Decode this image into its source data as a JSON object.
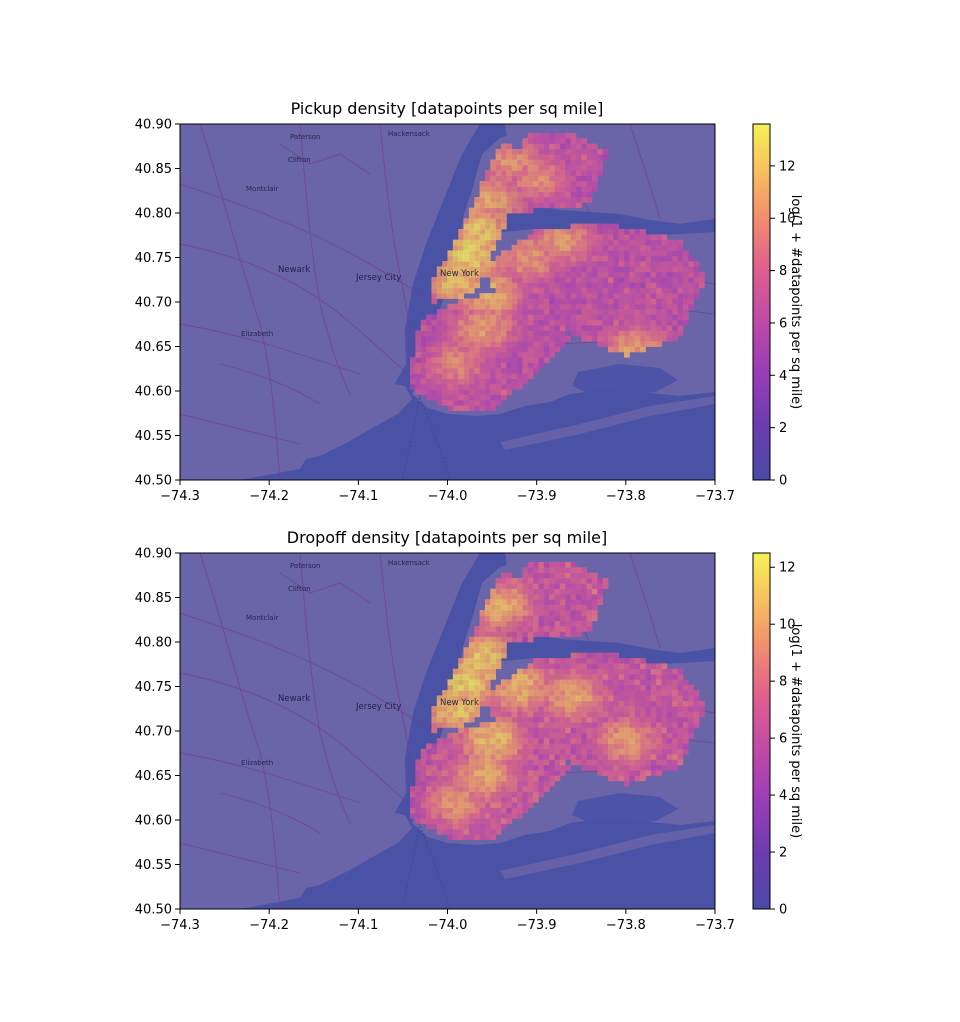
{
  "chart_data": [
    {
      "type": "heatmap",
      "title": "Pickup density [datapoints per sq mile]",
      "xlim": [
        -74.3,
        -73.7
      ],
      "ylim": [
        40.5,
        40.9
      ],
      "xticks": [
        -74.3,
        -74.2,
        -74.1,
        -74.0,
        -73.9,
        -73.8,
        -73.7
      ],
      "xtick_labels": [
        "−74.3",
        "−74.2",
        "−74.1",
        "−74.0",
        "−73.9",
        "−73.8",
        "−73.7"
      ],
      "yticks": [
        40.5,
        40.55,
        40.6,
        40.65,
        40.7,
        40.75,
        40.8,
        40.85,
        40.9
      ],
      "ytick_labels": [
        "40.50",
        "40.55",
        "40.60",
        "40.65",
        "40.70",
        "40.75",
        "40.80",
        "40.85",
        "40.90"
      ],
      "colorbar": {
        "label": "log(1 + #datapoints per sq mile)",
        "range": [
          0,
          13.6
        ],
        "ticks": [
          0,
          2,
          4,
          6,
          8,
          10,
          12
        ],
        "tick_labels": [
          "0",
          "2",
          "4",
          "6",
          "8",
          "10",
          "12"
        ],
        "colormap": "plasma"
      },
      "hotspots": [
        {
          "lon": -73.975,
          "lat": 40.755,
          "value": 13.2
        },
        {
          "lon": -73.965,
          "lat": 40.78,
          "value": 12.5
        },
        {
          "lon": -73.99,
          "lat": 40.725,
          "value": 12.4
        },
        {
          "lon": -73.955,
          "lat": 40.71,
          "value": 11.8
        },
        {
          "lon": -73.95,
          "lat": 40.815,
          "value": 11.2
        },
        {
          "lon": -73.93,
          "lat": 40.86,
          "value": 10.5
        },
        {
          "lon": -73.91,
          "lat": 40.75,
          "value": 10.8
        },
        {
          "lon": -73.96,
          "lat": 40.67,
          "value": 10.9
        },
        {
          "lon": -73.87,
          "lat": 40.77,
          "value": 10.7
        },
        {
          "lon": -73.79,
          "lat": 40.645,
          "value": 11.0
        },
        {
          "lon": -73.99,
          "lat": 40.63,
          "value": 10.0
        },
        {
          "lon": -73.9,
          "lat": 40.84,
          "value": 10.2
        }
      ]
    },
    {
      "type": "heatmap",
      "title": "Dropoff density [datapoints per sq mile]",
      "xlim": [
        -74.3,
        -73.7
      ],
      "ylim": [
        40.5,
        40.9
      ],
      "xticks": [
        -74.3,
        -74.2,
        -74.1,
        -74.0,
        -73.9,
        -73.8,
        -73.7
      ],
      "xtick_labels": [
        "−74.3",
        "−74.2",
        "−74.1",
        "−74.0",
        "−73.9",
        "−73.8",
        "−73.7"
      ],
      "yticks": [
        40.5,
        40.55,
        40.6,
        40.65,
        40.7,
        40.75,
        40.8,
        40.85,
        40.9
      ],
      "ytick_labels": [
        "40.50",
        "40.55",
        "40.60",
        "40.65",
        "40.70",
        "40.75",
        "40.80",
        "40.85",
        "40.90"
      ],
      "colorbar": {
        "label": "log(1 + #datapoints per sq mile)",
        "range": [
          0,
          12.5
        ],
        "ticks": [
          0,
          2,
          4,
          6,
          8,
          10,
          12
        ],
        "tick_labels": [
          "0",
          "2",
          "4",
          "6",
          "8",
          "10",
          "12"
        ],
        "colormap": "plasma"
      },
      "hotspots": [
        {
          "lon": -73.98,
          "lat": 40.755,
          "value": 12.0
        },
        {
          "lon": -73.96,
          "lat": 40.78,
          "value": 11.8
        },
        {
          "lon": -73.99,
          "lat": 40.725,
          "value": 11.6
        },
        {
          "lon": -73.95,
          "lat": 40.69,
          "value": 11.2
        },
        {
          "lon": -73.92,
          "lat": 40.75,
          "value": 11.0
        },
        {
          "lon": -73.94,
          "lat": 40.84,
          "value": 10.6
        },
        {
          "lon": -73.86,
          "lat": 40.74,
          "value": 10.4
        },
        {
          "lon": -73.96,
          "lat": 40.65,
          "value": 10.5
        },
        {
          "lon": -73.8,
          "lat": 40.69,
          "value": 10.0
        },
        {
          "lon": -73.99,
          "lat": 40.62,
          "value": 9.8
        }
      ]
    }
  ],
  "map_labels": [
    "Newark",
    "Jersey City",
    "New York",
    "Elizabeth",
    "Hackensack",
    "Paterson",
    "Clifton",
    "Montclair"
  ],
  "colors": {
    "water": "#4a52a6",
    "land": "#6a64a8",
    "roads": "#7a3a90"
  }
}
